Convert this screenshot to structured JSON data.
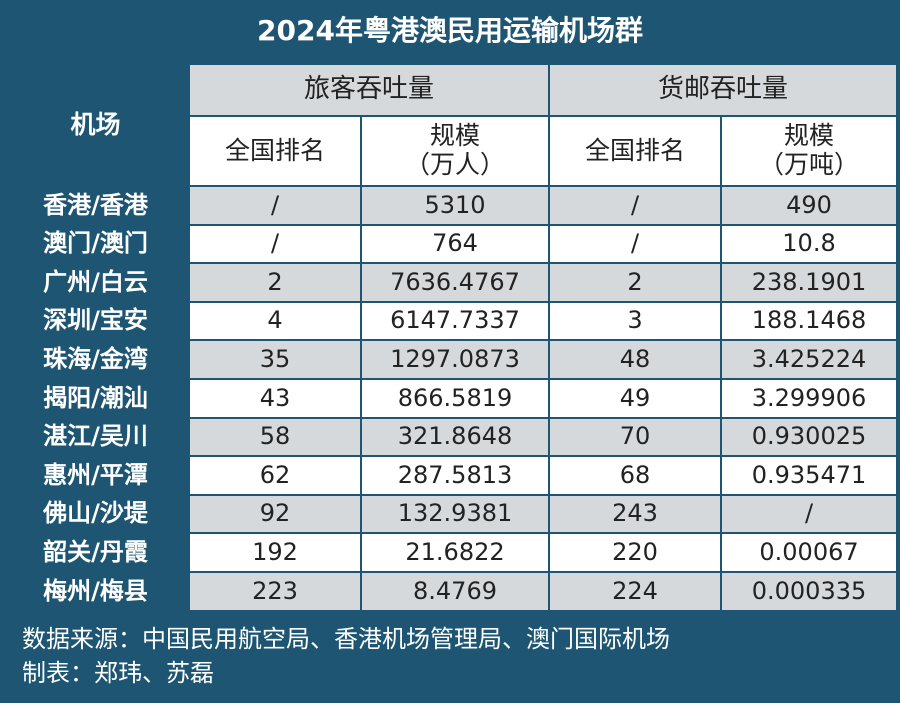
{
  "title": "2024年粤港澳民用运输机场群",
  "table": {
    "header": {
      "airport": "机场",
      "passenger": "旅客吞吐量",
      "cargo": "货邮吞吐量",
      "sub": [
        "全国排名",
        "规模\n（万人）",
        "全国排名",
        "规模\n（万吨）"
      ]
    },
    "rows": [
      [
        "香港/香港",
        "/",
        "5310",
        "/",
        "490"
      ],
      [
        "澳门/澳门",
        "/",
        "764",
        "/",
        "10.8"
      ],
      [
        "广州/白云",
        "2",
        "7636.4767",
        "2",
        "238.1901"
      ],
      [
        "深圳/宝安",
        "4",
        "6147.7337",
        "3",
        "188.1468"
      ],
      [
        "珠海/金湾",
        "35",
        "1297.0873",
        "48",
        "3.425224"
      ],
      [
        "揭阳/潮汕",
        "43",
        "866.5819",
        "49",
        "3.299906"
      ],
      [
        "湛江/吴川",
        "58",
        "321.8648",
        "70",
        "0.930025"
      ],
      [
        "惠州/平潭",
        "62",
        "287.5813",
        "68",
        "0.935471"
      ],
      [
        "佛山/沙堤",
        "92",
        "132.9381",
        "243",
        "/"
      ],
      [
        "韶关/丹霞",
        "192",
        "21.6822",
        "220",
        "0.00067"
      ],
      [
        "梅州/梅县",
        "223",
        "8.4769",
        "224",
        "0.000335"
      ]
    ]
  },
  "footer": [
    "数据来源：中国民用航空局、香港机场管理局、澳门国际机场",
    "制表：郑玮、苏磊"
  ]
}
